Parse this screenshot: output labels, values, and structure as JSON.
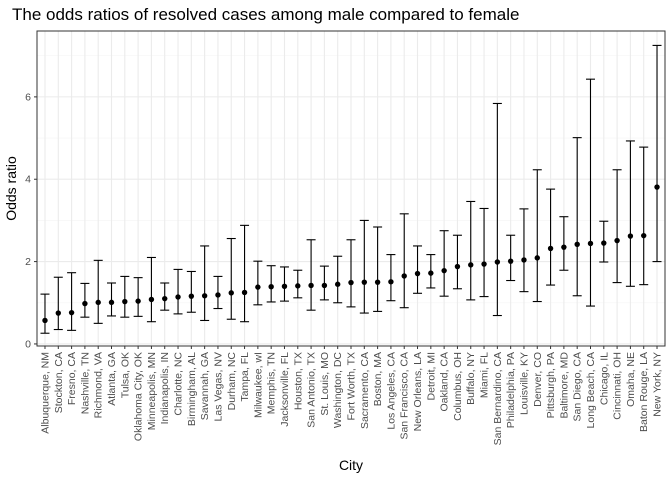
{
  "chart_data": {
    "type": "scatter",
    "title": "The odds ratios of resolved cases among male compared to female",
    "xlabel": "City",
    "ylabel": "Odds ratio",
    "ylim": [
      -0.05,
      7.6
    ],
    "y_ticks": [
      0,
      2,
      4,
      6
    ],
    "grid": true,
    "error_bars": true,
    "points": [
      {
        "city": "Albuquerque, NM",
        "or": 0.57,
        "lo": 0.26,
        "hi": 1.21
      },
      {
        "city": "Stockton, CA",
        "or": 0.75,
        "lo": 0.35,
        "hi": 1.62
      },
      {
        "city": "Fresno, CA",
        "or": 0.76,
        "lo": 0.33,
        "hi": 1.73
      },
      {
        "city": "Nashville, TN",
        "or": 0.98,
        "lo": 0.65,
        "hi": 1.47
      },
      {
        "city": "Richmond, VA",
        "or": 1.01,
        "lo": 0.5,
        "hi": 2.03
      },
      {
        "city": "Atlanta, GA",
        "or": 1.01,
        "lo": 0.68,
        "hi": 1.48
      },
      {
        "city": "Tulsa, OK",
        "or": 1.03,
        "lo": 0.65,
        "hi": 1.64
      },
      {
        "city": "Oklahoma City, OK",
        "or": 1.04,
        "lo": 0.67,
        "hi": 1.61
      },
      {
        "city": "Minneapolis, MN",
        "or": 1.08,
        "lo": 0.54,
        "hi": 2.1
      },
      {
        "city": "Indianapolis, IN",
        "or": 1.1,
        "lo": 0.82,
        "hi": 1.48
      },
      {
        "city": "Charlotte, NC",
        "or": 1.14,
        "lo": 0.73,
        "hi": 1.81
      },
      {
        "city": "Birmingham, AL",
        "or": 1.16,
        "lo": 0.77,
        "hi": 1.76
      },
      {
        "city": "Savannah, GA",
        "or": 1.17,
        "lo": 0.57,
        "hi": 2.38
      },
      {
        "city": "Las Vegas, NV",
        "or": 1.19,
        "lo": 0.86,
        "hi": 1.64
      },
      {
        "city": "Durham, NC",
        "or": 1.24,
        "lo": 0.6,
        "hi": 2.56
      },
      {
        "city": "Tampa, FL",
        "or": 1.25,
        "lo": 0.54,
        "hi": 2.88
      },
      {
        "city": "Milwaukee, wI",
        "or": 1.38,
        "lo": 0.95,
        "hi": 2.01
      },
      {
        "city": "Memphis, TN",
        "or": 1.39,
        "lo": 1.02,
        "hi": 1.9
      },
      {
        "city": "Jacksonville, FL",
        "or": 1.4,
        "lo": 1.04,
        "hi": 1.87
      },
      {
        "city": "Houston, TX",
        "or": 1.41,
        "lo": 1.12,
        "hi": 1.79
      },
      {
        "city": "San Antonio, TX",
        "or": 1.42,
        "lo": 0.82,
        "hi": 2.53
      },
      {
        "city": "St. Louis, MO",
        "or": 1.42,
        "lo": 1.07,
        "hi": 1.89
      },
      {
        "city": "Washington, DC",
        "or": 1.45,
        "lo": 1.0,
        "hi": 2.13
      },
      {
        "city": "Fort Worth, TX",
        "or": 1.49,
        "lo": 0.9,
        "hi": 2.53
      },
      {
        "city": "Sacramento, CA",
        "or": 1.5,
        "lo": 0.75,
        "hi": 3.0
      },
      {
        "city": "Boston, MA",
        "or": 1.5,
        "lo": 0.79,
        "hi": 2.84
      },
      {
        "city": "Los Angeles, CA",
        "or": 1.51,
        "lo": 1.05,
        "hi": 2.17
      },
      {
        "city": "San Francisco, CA",
        "or": 1.65,
        "lo": 0.88,
        "hi": 3.16
      },
      {
        "city": "New Orleans, LA",
        "or": 1.71,
        "lo": 1.23,
        "hi": 2.38
      },
      {
        "city": "Detroit, MI",
        "or": 1.72,
        "lo": 1.36,
        "hi": 2.17
      },
      {
        "city": "Oakland, CA",
        "or": 1.78,
        "lo": 1.16,
        "hi": 2.75
      },
      {
        "city": "Columbus, OH",
        "or": 1.88,
        "lo": 1.34,
        "hi": 2.64
      },
      {
        "city": "Buffalo, NY",
        "or": 1.92,
        "lo": 1.07,
        "hi": 3.46
      },
      {
        "city": "Miami, FL",
        "or": 1.94,
        "lo": 1.15,
        "hi": 3.29
      },
      {
        "city": "San Bernardino, CA",
        "or": 1.99,
        "lo": 0.69,
        "hi": 5.84
      },
      {
        "city": "Philadelphia, PA",
        "or": 2.01,
        "lo": 1.54,
        "hi": 2.64
      },
      {
        "city": "Louisville, KY",
        "or": 2.04,
        "lo": 1.27,
        "hi": 3.28
      },
      {
        "city": "Denver, CO",
        "or": 2.09,
        "lo": 1.03,
        "hi": 4.23
      },
      {
        "city": "Pittsburgh, PA",
        "or": 2.32,
        "lo": 1.43,
        "hi": 3.76
      },
      {
        "city": "Baltimore, MD",
        "or": 2.35,
        "lo": 1.79,
        "hi": 3.09
      },
      {
        "city": "San Diego, CA",
        "or": 2.42,
        "lo": 1.17,
        "hi": 5.01
      },
      {
        "city": "Long Beach, CA",
        "or": 2.44,
        "lo": 0.92,
        "hi": 6.43
      },
      {
        "city": "Chicago, IL",
        "or": 2.45,
        "lo": 1.99,
        "hi": 2.98
      },
      {
        "city": "Cincinnati, OH",
        "or": 2.51,
        "lo": 1.49,
        "hi": 4.23
      },
      {
        "city": "Omaha, NE",
        "or": 2.62,
        "lo": 1.4,
        "hi": 4.93
      },
      {
        "city": "Baton Rouge, LA",
        "or": 2.63,
        "lo": 1.44,
        "hi": 4.78
      },
      {
        "city": "New York, NY",
        "or": 3.81,
        "lo": 2.0,
        "hi": 7.25
      }
    ]
  },
  "colors": {
    "background": "#ffffff",
    "grid_major": "#ebebeb",
    "grid_minor": "#f5f5f5",
    "panel_border": "#333333",
    "point": "#000000",
    "errorbar": "#000000",
    "tick_label": "#4d4d4d"
  }
}
